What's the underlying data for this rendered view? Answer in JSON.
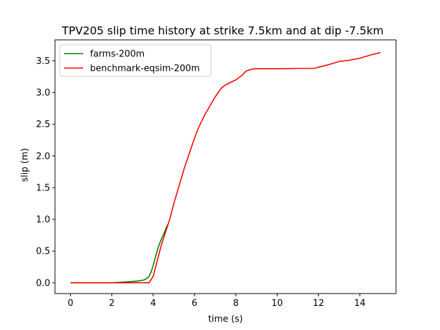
{
  "chart_data": {
    "type": "line",
    "title": "TPV205 slip time history at strike 7.5km and at dip -7.5km",
    "xlabel": "time (s)",
    "ylabel": "slip (m)",
    "xlim": [
      -0.75,
      15.75
    ],
    "ylim": [
      -0.17,
      3.83
    ],
    "xticks": [
      0,
      2,
      4,
      6,
      8,
      10,
      12,
      14
    ],
    "yticks": [
      0.0,
      0.5,
      1.0,
      1.5,
      2.0,
      2.5,
      3.0,
      3.5
    ],
    "xtick_labels": [
      "0",
      "2",
      "4",
      "6",
      "8",
      "10",
      "12",
      "14"
    ],
    "ytick_labels": [
      "0.0",
      "0.5",
      "1.0",
      "1.5",
      "2.0",
      "2.5",
      "3.0",
      "3.5"
    ],
    "grid": false,
    "legend_position": "upper-left",
    "series": [
      {
        "name": "farms-200m",
        "color": "#008000",
        "x": [
          0,
          1.0,
          2.0,
          2.5,
          3.0,
          3.3,
          3.5,
          3.6,
          3.7,
          3.8,
          3.9,
          4.0,
          4.1,
          4.2,
          4.3,
          4.4,
          4.5,
          4.6,
          4.7
        ],
        "y": [
          0,
          0,
          0,
          0.01,
          0.02,
          0.03,
          0.04,
          0.05,
          0.07,
          0.1,
          0.17,
          0.27,
          0.39,
          0.51,
          0.61,
          0.69,
          0.76,
          0.84,
          0.92
        ]
      },
      {
        "name": "benchmark-eqsim-200m",
        "color": "#ff0000",
        "x": [
          0,
          1.0,
          2.0,
          3.0,
          3.5,
          3.8,
          4.0,
          4.2,
          4.4,
          4.6,
          4.8,
          5.0,
          5.5,
          6.0,
          6.2,
          6.5,
          7.0,
          7.3,
          7.5,
          8.0,
          8.3,
          8.5,
          8.8,
          9.0,
          10.0,
          11.0,
          11.8,
          12.0,
          12.5,
          13.0,
          13.5,
          14.0,
          14.5,
          15.0
        ],
        "y": [
          0,
          0,
          0,
          0,
          0,
          0,
          0.1,
          0.35,
          0.6,
          0.8,
          1.0,
          1.25,
          1.8,
          2.28,
          2.45,
          2.65,
          2.93,
          3.07,
          3.12,
          3.2,
          3.27,
          3.34,
          3.37,
          3.375,
          3.375,
          3.38,
          3.38,
          3.4,
          3.44,
          3.49,
          3.51,
          3.54,
          3.59,
          3.63
        ]
      }
    ]
  }
}
